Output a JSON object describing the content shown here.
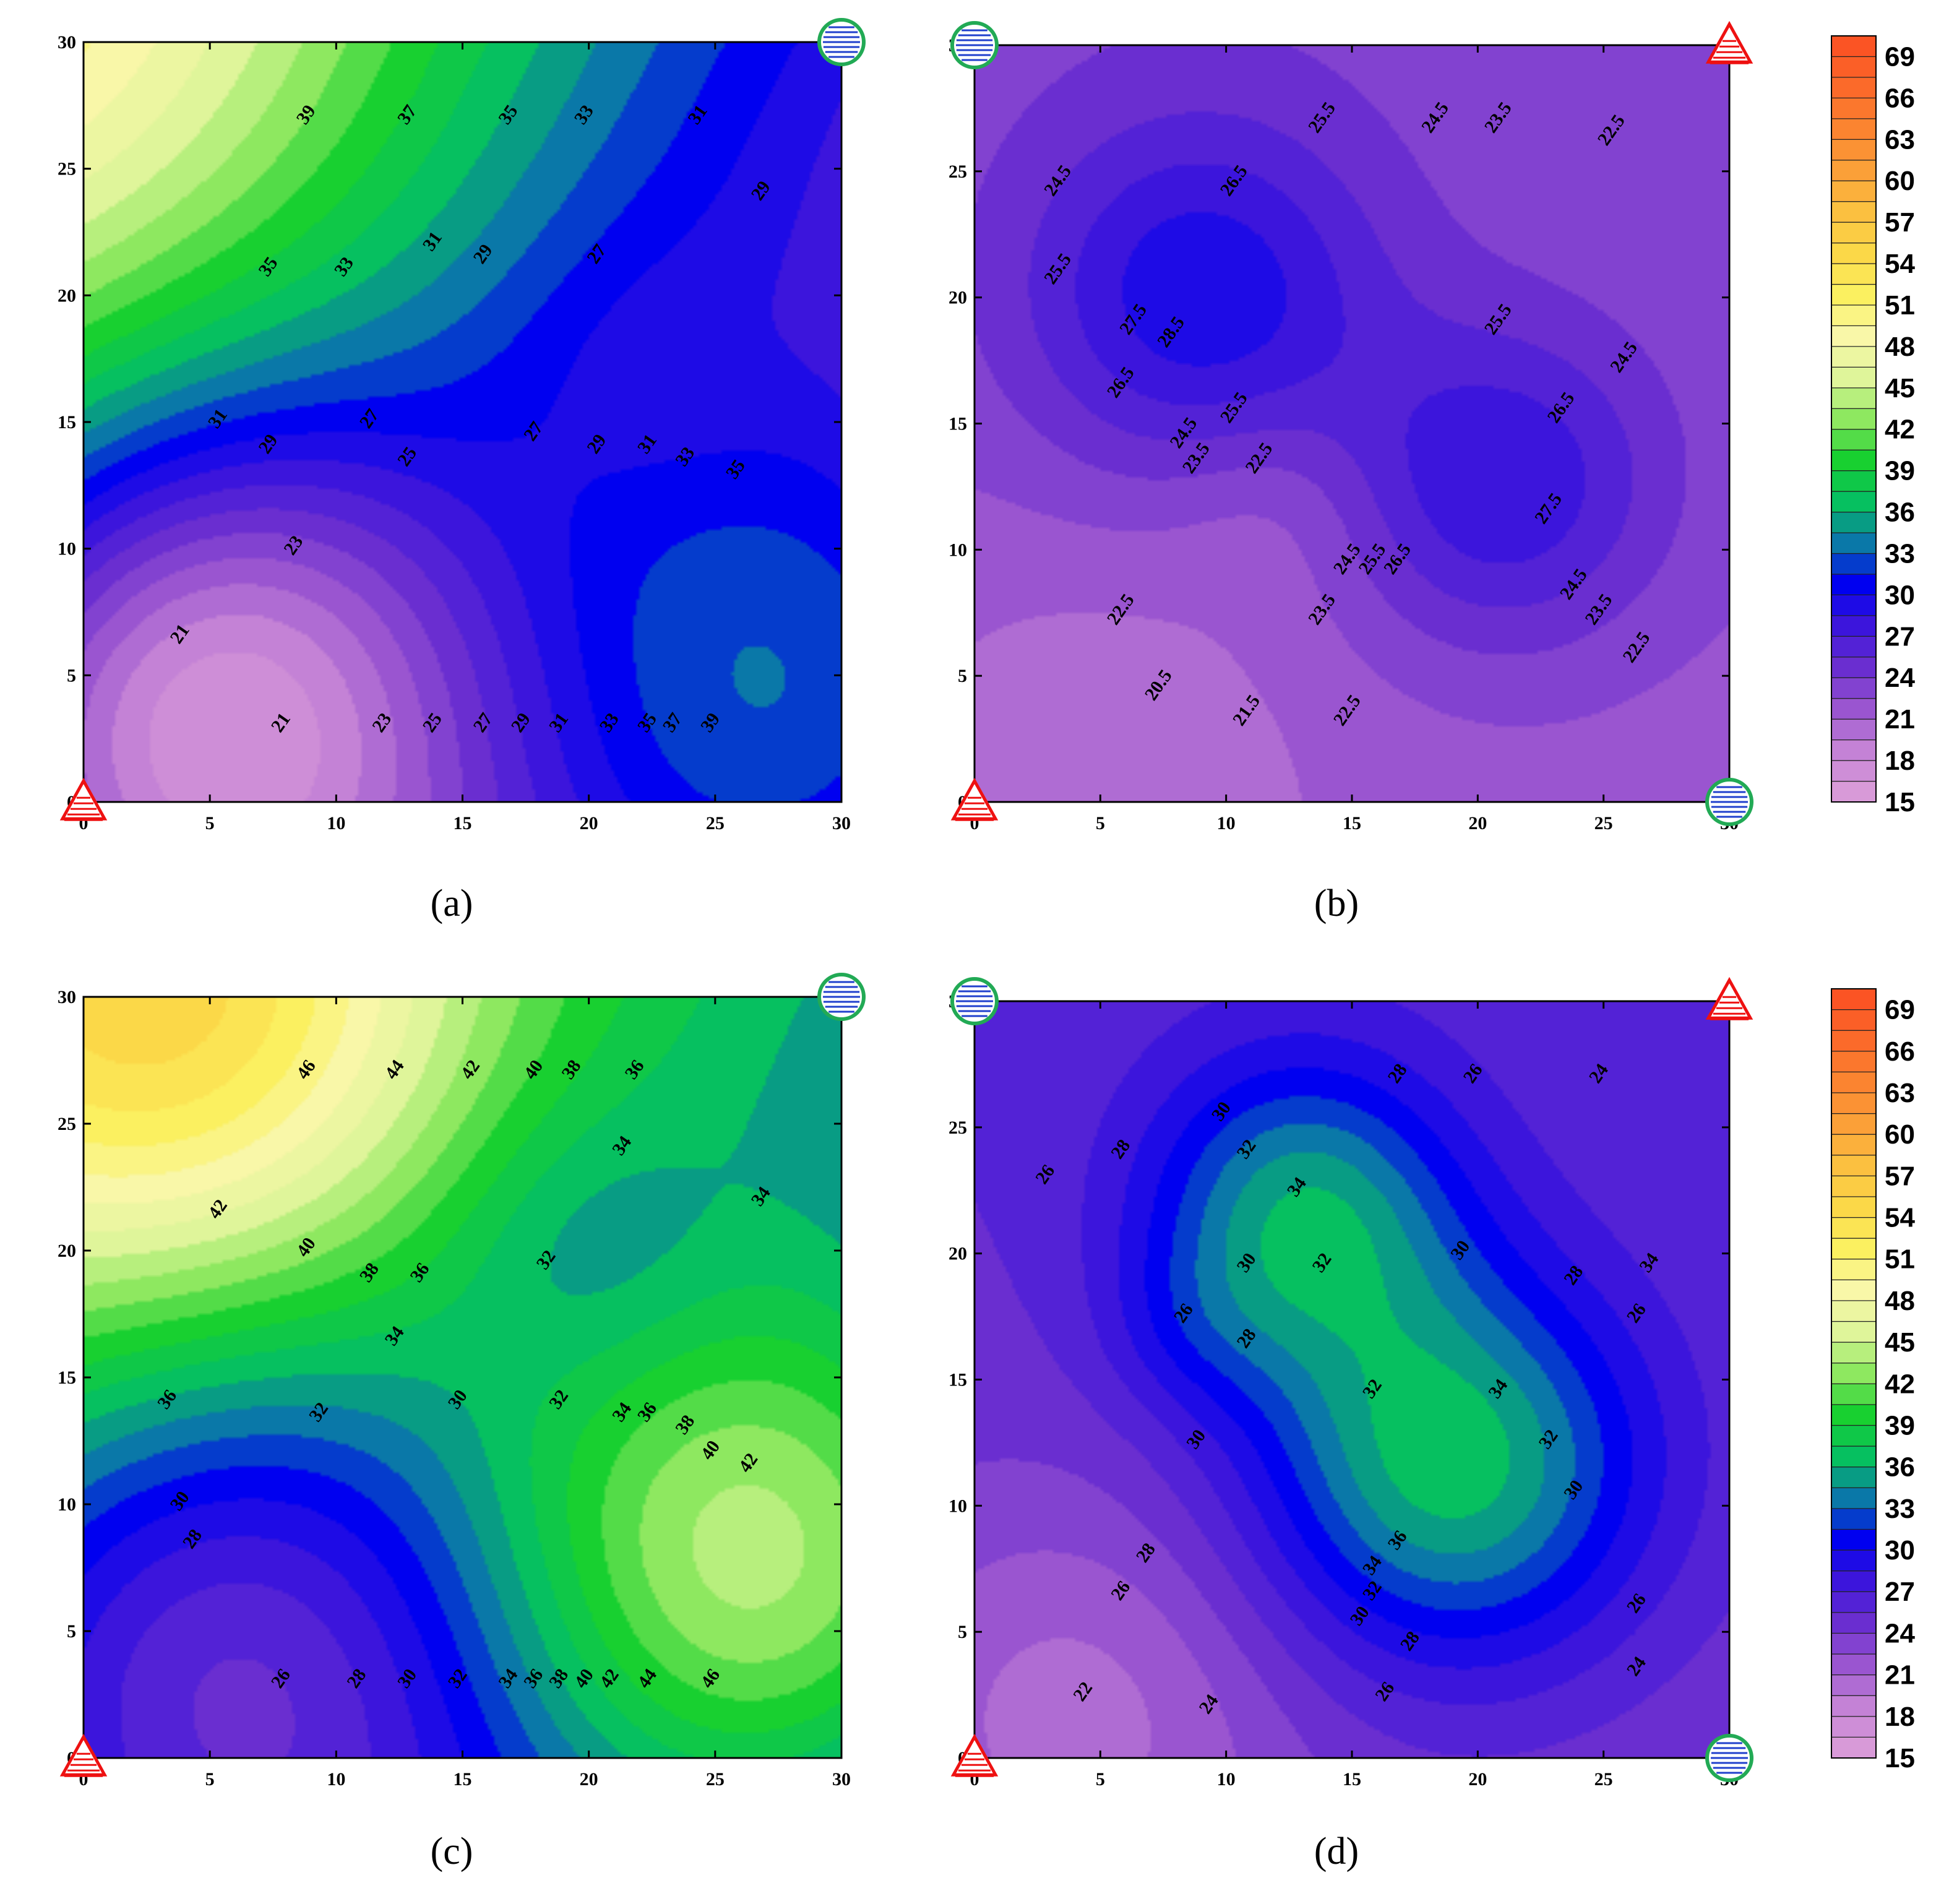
{
  "colors": {
    "scale": [
      {
        "v": 15,
        "c": "#d89ad8"
      },
      {
        "v": 18,
        "c": "#c482d6"
      },
      {
        "v": 21,
        "c": "#9a55d0"
      },
      {
        "v": 24,
        "c": "#6a2ed0"
      },
      {
        "v": 27,
        "c": "#3c15dc"
      },
      {
        "v": 30,
        "c": "#0000f0"
      },
      {
        "v": 33,
        "c": "#0a78a8"
      },
      {
        "v": 36,
        "c": "#06c060"
      },
      {
        "v": 39,
        "c": "#18d030"
      },
      {
        "v": 42,
        "c": "#8ee860"
      },
      {
        "v": 45,
        "c": "#dff59a"
      },
      {
        "v": 48,
        "c": "#f9f7a8"
      },
      {
        "v": 51,
        "c": "#fbf060"
      },
      {
        "v": 54,
        "c": "#fbd848"
      },
      {
        "v": 57,
        "c": "#fbc040"
      },
      {
        "v": 60,
        "c": "#fba038"
      },
      {
        "v": 63,
        "c": "#fb8430"
      },
      {
        "v": 66,
        "c": "#fb6a2a"
      },
      {
        "v": 69,
        "c": "#fb5424"
      }
    ],
    "triangle": "#ee1111",
    "circle": "#22aa55",
    "circle_lines": "#2040cc"
  },
  "chart_data": [
    {
      "type": "heatmap",
      "id": "a",
      "caption": "(a)",
      "xlim": [
        0,
        30
      ],
      "ylim": [
        0,
        30
      ],
      "x_ticks": [
        "0",
        "5",
        "10",
        "15",
        "20",
        "25",
        "30"
      ],
      "y_ticks": [
        "0",
        "5",
        "10",
        "15",
        "20",
        "25",
        "30"
      ],
      "markers": {
        "triangle": [
          0,
          0
        ],
        "circle": [
          30,
          30
        ]
      },
      "field": {
        "base": 31,
        "plane": [
          -0.5,
          0.35
        ],
        "bumps": [
          [
            4.5,
            4,
            -16,
            8
          ],
          [
            0,
            30,
            6,
            10
          ],
          [
            30,
            2,
            13,
            10
          ],
          [
            22,
            17,
            -2,
            4
          ]
        ]
      },
      "contour_labels": [
        {
          "t": "39",
          "x": 9,
          "y": 27
        },
        {
          "t": "37",
          "x": 13,
          "y": 27
        },
        {
          "t": "35",
          "x": 17,
          "y": 27
        },
        {
          "t": "33",
          "x": 20,
          "y": 27
        },
        {
          "t": "31",
          "x": 24.5,
          "y": 27
        },
        {
          "t": "29",
          "x": 27,
          "y": 24
        },
        {
          "t": "35",
          "x": 7.5,
          "y": 21
        },
        {
          "t": "33",
          "x": 10.5,
          "y": 21
        },
        {
          "t": "31",
          "x": 14,
          "y": 22
        },
        {
          "t": "29",
          "x": 16,
          "y": 21.5
        },
        {
          "t": "27",
          "x": 20.5,
          "y": 21.5
        },
        {
          "t": "31",
          "x": 5.5,
          "y": 15
        },
        {
          "t": "29",
          "x": 7.5,
          "y": 14
        },
        {
          "t": "27",
          "x": 11.5,
          "y": 15
        },
        {
          "t": "25",
          "x": 13,
          "y": 13.5
        },
        {
          "t": "27",
          "x": 18,
          "y": 14.5
        },
        {
          "t": "29",
          "x": 20.5,
          "y": 14
        },
        {
          "t": "31",
          "x": 22.5,
          "y": 14
        },
        {
          "t": "33",
          "x": 24,
          "y": 13.5
        },
        {
          "t": "35",
          "x": 26,
          "y": 13
        },
        {
          "t": "23",
          "x": 8.5,
          "y": 10
        },
        {
          "t": "21",
          "x": 4,
          "y": 6.5
        },
        {
          "t": "21",
          "x": 8,
          "y": 3
        },
        {
          "t": "23",
          "x": 12,
          "y": 3
        },
        {
          "t": "25",
          "x": 14,
          "y": 3
        },
        {
          "t": "27",
          "x": 16,
          "y": 3
        },
        {
          "t": "29",
          "x": 17.5,
          "y": 3
        },
        {
          "t": "31",
          "x": 19,
          "y": 3
        },
        {
          "t": "33",
          "x": 21,
          "y": 3
        },
        {
          "t": "35",
          "x": 22.5,
          "y": 3
        },
        {
          "t": "37",
          "x": 23.5,
          "y": 3
        },
        {
          "t": "39",
          "x": 25,
          "y": 3
        }
      ]
    },
    {
      "type": "heatmap",
      "id": "b",
      "caption": "(b)",
      "xlim": [
        0,
        30
      ],
      "ylim": [
        0,
        30
      ],
      "x_ticks": [
        "0",
        "5",
        "10",
        "15",
        "20",
        "25",
        "30"
      ],
      "y_ticks": [
        "0",
        "5",
        "10",
        "15",
        "20",
        "25",
        "30"
      ],
      "markers": {
        "triangle_tl": [
          0,
          0
        ],
        "triangle_tr": [
          30,
          30
        ],
        "circle_tl": [
          0,
          30
        ],
        "circle_br": [
          30,
          0
        ]
      },
      "field": {
        "base": 22.5,
        "plane": [
          0,
          0.05
        ],
        "bumps": [
          [
            9,
            20,
            7,
            5
          ],
          [
            21,
            12.5,
            6,
            4.5
          ],
          [
            12,
            12,
            -1.5,
            3
          ],
          [
            5,
            2,
            -2,
            6
          ]
        ]
      },
      "contour_labels": [
        {
          "t": "25.5",
          "x": 14,
          "y": 27
        },
        {
          "t": "24.5",
          "x": 18.5,
          "y": 27
        },
        {
          "t": "23.5",
          "x": 21,
          "y": 27
        },
        {
          "t": "22.5",
          "x": 25.5,
          "y": 26.5
        },
        {
          "t": "24.5",
          "x": 3.5,
          "y": 24.5
        },
        {
          "t": "26.5",
          "x": 10.5,
          "y": 24.5
        },
        {
          "t": "25.5",
          "x": 3.5,
          "y": 21
        },
        {
          "t": "27.5",
          "x": 6.5,
          "y": 19
        },
        {
          "t": "28.5",
          "x": 8,
          "y": 18.5
        },
        {
          "t": "26.5",
          "x": 6,
          "y": 16.5
        },
        {
          "t": "25.5",
          "x": 10.5,
          "y": 15.5
        },
        {
          "t": "24.5",
          "x": 8.5,
          "y": 14.5
        },
        {
          "t": "23.5",
          "x": 9,
          "y": 13.5
        },
        {
          "t": "22.5",
          "x": 11.5,
          "y": 13.5
        },
        {
          "t": "25.5",
          "x": 21,
          "y": 19
        },
        {
          "t": "24.5",
          "x": 26,
          "y": 17.5
        },
        {
          "t": "26.5",
          "x": 23.5,
          "y": 15.5
        },
        {
          "t": "27.5",
          "x": 23,
          "y": 11.5
        },
        {
          "t": "24.5",
          "x": 15,
          "y": 9.5
        },
        {
          "t": "25.5",
          "x": 16,
          "y": 9.5
        },
        {
          "t": "26.5",
          "x": 17,
          "y": 9.5
        },
        {
          "t": "23.5",
          "x": 14,
          "y": 7.5
        },
        {
          "t": "24.5",
          "x": 24,
          "y": 8.5
        },
        {
          "t": "23.5",
          "x": 25,
          "y": 7.5
        },
        {
          "t": "22.5",
          "x": 26.5,
          "y": 6
        },
        {
          "t": "22.5",
          "x": 6,
          "y": 7.5
        },
        {
          "t": "20.5",
          "x": 7.5,
          "y": 4.5
        },
        {
          "t": "21.5",
          "x": 11,
          "y": 3.5
        },
        {
          "t": "22.5",
          "x": 15,
          "y": 3.5
        }
      ]
    },
    {
      "type": "heatmap",
      "id": "c",
      "caption": "(c)",
      "xlim": [
        0,
        30
      ],
      "ylim": [
        0,
        30
      ],
      "x_ticks": [
        "0",
        "5",
        "10",
        "15",
        "20",
        "25",
        "30"
      ],
      "y_ticks": [
        "0",
        "5",
        "10",
        "15",
        "20",
        "25",
        "30"
      ],
      "markers": {
        "triangle": [
          0,
          0
        ],
        "circle": [
          30,
          30
        ]
      },
      "field": {
        "base": 36,
        "plane": [
          -0.3,
          0.25
        ],
        "bumps": [
          [
            5,
            4,
            -11,
            9
          ],
          [
            4,
            29,
            12,
            8
          ],
          [
            27,
            7,
            14,
            8
          ],
          [
            20,
            20,
            -3,
            4
          ]
        ]
      },
      "contour_labels": [
        {
          "t": "46",
          "x": 9,
          "y": 27
        },
        {
          "t": "44",
          "x": 12.5,
          "y": 27
        },
        {
          "t": "42",
          "x": 15.5,
          "y": 27
        },
        {
          "t": "40",
          "x": 18,
          "y": 27
        },
        {
          "t": "38",
          "x": 19.5,
          "y": 27
        },
        {
          "t": "36",
          "x": 22,
          "y": 27
        },
        {
          "t": "34",
          "x": 21.5,
          "y": 24
        },
        {
          "t": "42",
          "x": 5.5,
          "y": 21.5
        },
        {
          "t": "34",
          "x": 27,
          "y": 22
        },
        {
          "t": "40",
          "x": 9,
          "y": 20
        },
        {
          "t": "38",
          "x": 11.5,
          "y": 19
        },
        {
          "t": "36",
          "x": 13.5,
          "y": 19
        },
        {
          "t": "32",
          "x": 18.5,
          "y": 19.5
        },
        {
          "t": "34",
          "x": 12.5,
          "y": 16.5
        },
        {
          "t": "36",
          "x": 3.5,
          "y": 14
        },
        {
          "t": "32",
          "x": 9.5,
          "y": 13.5
        },
        {
          "t": "30",
          "x": 15,
          "y": 14
        },
        {
          "t": "32",
          "x": 19,
          "y": 14
        },
        {
          "t": "34",
          "x": 21.5,
          "y": 13.5
        },
        {
          "t": "36",
          "x": 22.5,
          "y": 13.5
        },
        {
          "t": "38",
          "x": 24,
          "y": 13
        },
        {
          "t": "40",
          "x": 25,
          "y": 12
        },
        {
          "t": "42",
          "x": 26.5,
          "y": 11.5
        },
        {
          "t": "30",
          "x": 4,
          "y": 10
        },
        {
          "t": "28",
          "x": 4.5,
          "y": 8.5
        },
        {
          "t": "26",
          "x": 8,
          "y": 3
        },
        {
          "t": "28",
          "x": 11,
          "y": 3
        },
        {
          "t": "30",
          "x": 13,
          "y": 3
        },
        {
          "t": "32",
          "x": 15,
          "y": 3
        },
        {
          "t": "34",
          "x": 17,
          "y": 3
        },
        {
          "t": "36",
          "x": 18,
          "y": 3
        },
        {
          "t": "38",
          "x": 19,
          "y": 3
        },
        {
          "t": "40",
          "x": 20,
          "y": 3
        },
        {
          "t": "42",
          "x": 21,
          "y": 3
        },
        {
          "t": "44",
          "x": 22.5,
          "y": 3
        },
        {
          "t": "46",
          "x": 25,
          "y": 3
        }
      ]
    },
    {
      "type": "heatmap",
      "id": "d",
      "caption": "(d)",
      "xlim": [
        0,
        30
      ],
      "ylim": [
        0,
        30
      ],
      "x_ticks": [
        "0",
        "5",
        "10",
        "15",
        "20",
        "25",
        "30"
      ],
      "y_ticks": [
        "0",
        "5",
        "10",
        "15",
        "20",
        "25",
        "30"
      ],
      "markers": {
        "triangle_tl": [
          0,
          0
        ],
        "triangle_tr": [
          30,
          30
        ],
        "circle_tl": [
          0,
          30
        ],
        "circle_br": [
          30,
          0
        ]
      },
      "field": {
        "base": 25,
        "plane": [
          0,
          0.05
        ],
        "bumps": [
          [
            13,
            21.5,
            10,
            4.5
          ],
          [
            19,
            11.5,
            12,
            5.5
          ],
          [
            8.5,
            17,
            2,
            2.5
          ],
          [
            4,
            2,
            -4,
            6
          ]
        ]
      },
      "contour_labels": [
        {
          "t": "28",
          "x": 17,
          "y": 27
        },
        {
          "t": "26",
          "x": 20,
          "y": 27
        },
        {
          "t": "24",
          "x": 25,
          "y": 27
        },
        {
          "t": "30",
          "x": 10,
          "y": 25.5
        },
        {
          "t": "28",
          "x": 6,
          "y": 24
        },
        {
          "t": "32",
          "x": 11,
          "y": 24
        },
        {
          "t": "26",
          "x": 3,
          "y": 23
        },
        {
          "t": "34",
          "x": 13,
          "y": 22.5
        },
        {
          "t": "34",
          "x": 27,
          "y": 19.5
        },
        {
          "t": "30",
          "x": 19.5,
          "y": 20
        },
        {
          "t": "30",
          "x": 11,
          "y": 19.5
        },
        {
          "t": "32",
          "x": 14,
          "y": 19.5
        },
        {
          "t": "28",
          "x": 24,
          "y": 19
        },
        {
          "t": "26",
          "x": 26.5,
          "y": 17.5
        },
        {
          "t": "26",
          "x": 8.5,
          "y": 17.5
        },
        {
          "t": "28",
          "x": 11,
          "y": 16.5
        },
        {
          "t": "32",
          "x": 16,
          "y": 14.5
        },
        {
          "t": "34",
          "x": 21,
          "y": 14.5
        },
        {
          "t": "32",
          "x": 23,
          "y": 12.5
        },
        {
          "t": "30",
          "x": 9,
          "y": 12.5
        },
        {
          "t": "30",
          "x": 24,
          "y": 10.5
        },
        {
          "t": "36",
          "x": 17,
          "y": 8.5
        },
        {
          "t": "28",
          "x": 7,
          "y": 8
        },
        {
          "t": "34",
          "x": 16,
          "y": 7.5
        },
        {
          "t": "32",
          "x": 16,
          "y": 6.5
        },
        {
          "t": "26",
          "x": 6,
          "y": 6.5
        },
        {
          "t": "30",
          "x": 15.5,
          "y": 5.5
        },
        {
          "t": "26",
          "x": 26.5,
          "y": 6
        },
        {
          "t": "28",
          "x": 17.5,
          "y": 4.5
        },
        {
          "t": "24",
          "x": 26.5,
          "y": 3.5
        },
        {
          "t": "22",
          "x": 4.5,
          "y": 2.5
        },
        {
          "t": "24",
          "x": 9.5,
          "y": 2
        },
        {
          "t": "26",
          "x": 16.5,
          "y": 2.5
        }
      ]
    }
  ],
  "colorbars": [
    {
      "labels": [
        "69",
        "66",
        "63",
        "60",
        "57",
        "54",
        "51",
        "48",
        "45",
        "42",
        "39",
        "36",
        "33",
        "30",
        "27",
        "24",
        "21",
        "18",
        "15"
      ]
    },
    {
      "labels": [
        "69",
        "66",
        "63",
        "60",
        "57",
        "54",
        "51",
        "48",
        "45",
        "42",
        "39",
        "36",
        "33",
        "30",
        "27",
        "24",
        "21",
        "18",
        "15"
      ]
    }
  ]
}
